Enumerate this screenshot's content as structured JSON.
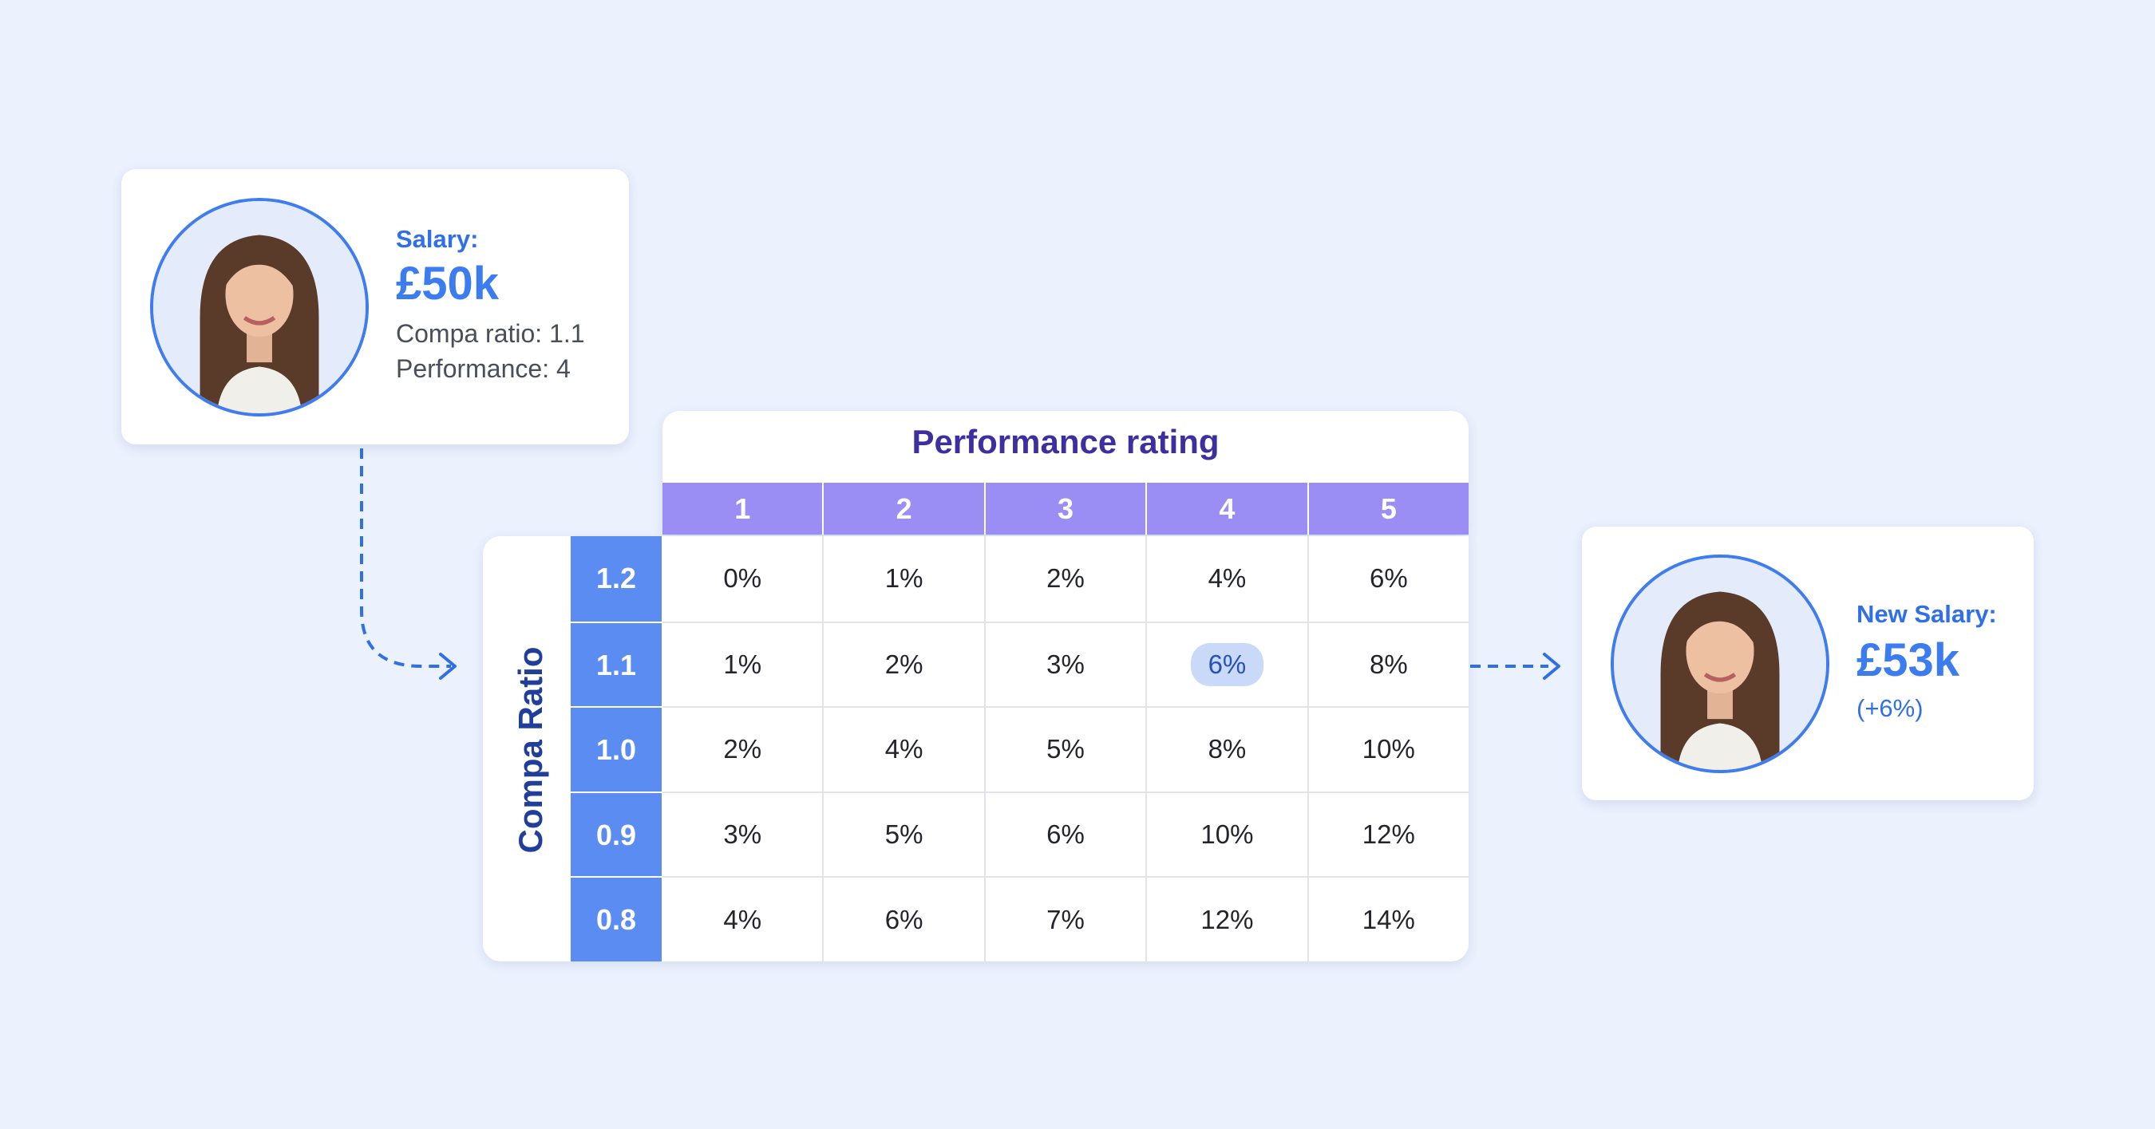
{
  "before_card": {
    "salary_label": "Salary:",
    "salary_value": "£50k",
    "compa_ratio_text": "Compa ratio: 1.1",
    "performance_text": "Performance:  4"
  },
  "after_card": {
    "new_salary_label": "New Salary:",
    "new_salary_value": "£53k",
    "change_text": "(+6%)"
  },
  "matrix": {
    "column_title": "Performance rating",
    "row_title": "Compa Ratio",
    "columns": [
      "1",
      "2",
      "3",
      "4",
      "5"
    ],
    "rows": [
      "1.2",
      "1.1",
      "1.0",
      "0.9",
      "0.8"
    ],
    "cells": [
      [
        "0%",
        "1%",
        "2%",
        "4%",
        "6%"
      ],
      [
        "1%",
        "2%",
        "3%",
        "6%",
        "8%"
      ],
      [
        "2%",
        "4%",
        "5%",
        "8%",
        "10%"
      ],
      [
        "3%",
        "5%",
        "6%",
        "10%",
        "12%"
      ],
      [
        "4%",
        "6%",
        "7%",
        "12%",
        "14%"
      ]
    ],
    "highlight": {
      "row": 1,
      "col": 3
    }
  },
  "colors": {
    "accent": "#3b7cf0",
    "header": "#9a8df4",
    "row_header": "#5a8cf1",
    "highlight": "#c9daf9"
  }
}
